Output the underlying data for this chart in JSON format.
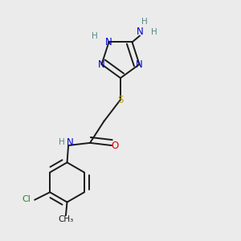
{
  "bg_color": "#ebebeb",
  "bond_color": "#1a1a1a",
  "bond_width": 1.4,
  "atom_colors": {
    "C": "#1a1a1a",
    "N": "#0000cc",
    "O": "#dd0000",
    "S": "#bbaa00",
    "Cl": "#228822",
    "H": "#558888",
    "NH2_H": "#558888",
    "NH2_N": "#0000cc"
  },
  "font_size": 8.5
}
